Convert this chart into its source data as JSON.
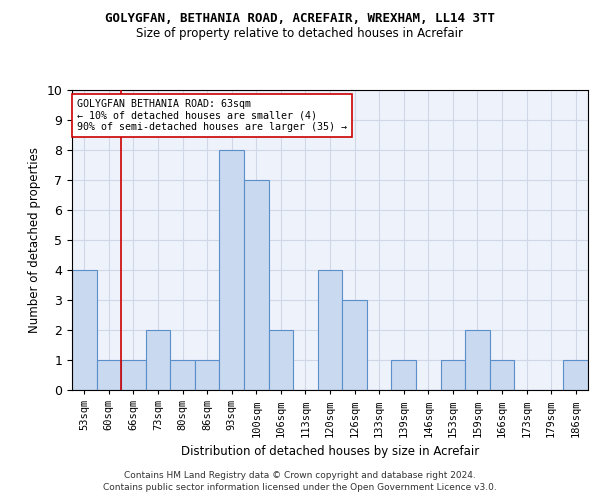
{
  "title": "GOLYGFAN, BETHANIA ROAD, ACREFAIR, WREXHAM, LL14 3TT",
  "subtitle": "Size of property relative to detached houses in Acrefair",
  "xlabel": "Distribution of detached houses by size in Acrefair",
  "ylabel": "Number of detached properties",
  "categories": [
    "53sqm",
    "60sqm",
    "66sqm",
    "73sqm",
    "80sqm",
    "86sqm",
    "93sqm",
    "100sqm",
    "106sqm",
    "113sqm",
    "120sqm",
    "126sqm",
    "133sqm",
    "139sqm",
    "146sqm",
    "153sqm",
    "159sqm",
    "166sqm",
    "173sqm",
    "179sqm",
    "186sqm"
  ],
  "values": [
    4,
    1,
    1,
    2,
    1,
    1,
    8,
    7,
    2,
    0,
    4,
    3,
    0,
    1,
    0,
    1,
    2,
    1,
    0,
    0,
    1
  ],
  "bar_color": "#c9d9f0",
  "bar_edge_color": "#5b8fc9",
  "vline_x": 1.5,
  "vline_color": "#cc0000",
  "annotation_text": "GOLYGFAN BETHANIA ROAD: 63sqm\n← 10% of detached houses are smaller (4)\n90% of semi-detached houses are larger (35) →",
  "annotation_box_color": "#ffffff",
  "annotation_box_edge_color": "#cc0000",
  "ylim": [
    0,
    10
  ],
  "yticks": [
    0,
    1,
    2,
    3,
    4,
    5,
    6,
    7,
    8,
    9,
    10
  ],
  "grid_color": "#d0d8e8",
  "footer_line1": "Contains HM Land Registry data © Crown copyright and database right 2024.",
  "footer_line2": "Contains public sector information licensed under the Open Government Licence v3.0.",
  "bg_color": "#eef2fa"
}
